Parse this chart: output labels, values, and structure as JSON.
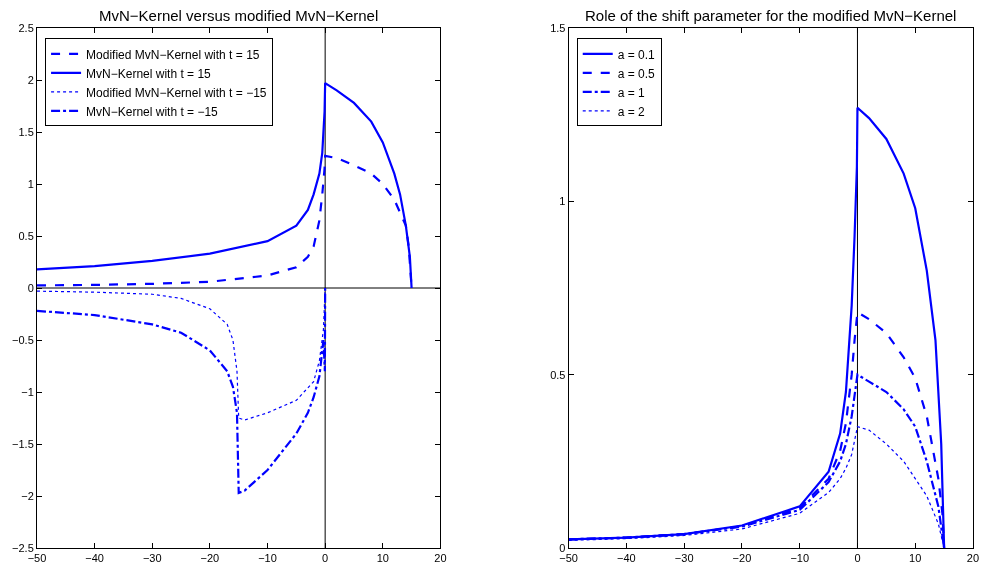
{
  "chart_data": [
    {
      "type": "line",
      "title": "MvN−Kernel versus modified MvN−Kernel",
      "xlim": [
        -50,
        20
      ],
      "xticks": [
        -50,
        -40,
        -30,
        -20,
        -10,
        0,
        10,
        20
      ],
      "ylim": [
        -2.5,
        2.5
      ],
      "yticks": [
        -2.5,
        -2,
        -1.5,
        -1,
        -0.5,
        0,
        0.5,
        1,
        1.5,
        2,
        2.5
      ],
      "grid": false,
      "legend": "top left",
      "ref_lines": [
        {
          "axis": "x",
          "value": 0,
          "color": "#000000"
        },
        {
          "axis": "y",
          "value": 0,
          "color": "#000000"
        }
      ],
      "series": [
        {
          "name": "Modified MvN−Kernel with t = 15",
          "color": "#0000ff",
          "line_style": "dashed",
          "x": [
            -50,
            -40,
            -30,
            -20,
            -10,
            -5,
            -3,
            -2,
            -1,
            -0.5,
            -0.1,
            0,
            2,
            5,
            8,
            10,
            12,
            14,
            14.5,
            15
          ],
          "values": [
            0.025,
            0.03,
            0.04,
            0.06,
            0.12,
            0.2,
            0.3,
            0.4,
            0.65,
            0.9,
            1.15,
            1.27,
            1.25,
            1.18,
            1.1,
            1.0,
            0.85,
            0.6,
            0.4,
            0
          ]
        },
        {
          "name": "MvN−Kernel with t = 15",
          "color": "#0000ff",
          "line_style": "solid",
          "x": [
            -50,
            -40,
            -30,
            -20,
            -10,
            -5,
            -3,
            -2,
            -1,
            -0.5,
            -0.1,
            0,
            2,
            5,
            8,
            10,
            12,
            13,
            14,
            14.7,
            15
          ],
          "values": [
            0.18,
            0.21,
            0.26,
            0.33,
            0.45,
            0.6,
            0.75,
            0.9,
            1.1,
            1.3,
            1.7,
            1.97,
            1.9,
            1.78,
            1.6,
            1.4,
            1.1,
            0.9,
            0.6,
            0.3,
            0
          ]
        },
        {
          "name": "Modified MvN−Kernel with t = −15",
          "color": "#0000ff",
          "line_style": "dotted",
          "x": [
            -50,
            -40,
            -30,
            -25,
            -20,
            -17,
            -16,
            -15.3,
            -15,
            -14,
            -10,
            -5,
            -2,
            -1,
            -0.3,
            0
          ],
          "values": [
            -0.03,
            -0.04,
            -0.06,
            -0.1,
            -0.2,
            -0.35,
            -0.5,
            -0.8,
            -1.25,
            -1.27,
            -1.2,
            -1.08,
            -0.9,
            -0.7,
            -0.4,
            0
          ]
        },
        {
          "name": "MvN−Kernel with t = −15",
          "color": "#0000ff",
          "line_style": "dashdot",
          "x": [
            -50,
            -40,
            -30,
            -25,
            -20,
            -17,
            -16,
            -15.3,
            -15,
            -14,
            -10,
            -5,
            -3,
            -2,
            -1,
            -0.3,
            -0.05,
            0
          ],
          "values": [
            -0.22,
            -0.26,
            -0.35,
            -0.43,
            -0.6,
            -0.8,
            -0.95,
            -1.2,
            -1.97,
            -1.95,
            -1.75,
            -1.4,
            -1.2,
            -1.05,
            -0.85,
            -0.5,
            -0.8,
            0
          ]
        }
      ]
    },
    {
      "type": "line",
      "title": "Role of the shift parameter for the modified MvN−Kernel",
      "xlim": [
        -50,
        20
      ],
      "xticks": [
        -50,
        -40,
        -30,
        -20,
        -10,
        0,
        10,
        20
      ],
      "ylim": [
        0,
        1.5
      ],
      "yticks": [
        0,
        0.5,
        1,
        1.5
      ],
      "grid": false,
      "legend": "top left",
      "ref_lines": [
        {
          "axis": "x",
          "value": 0,
          "color": "#000000"
        }
      ],
      "series": [
        {
          "name": "a = 0.1",
          "color": "#0000ff",
          "line_style": "solid",
          "x": [
            -50,
            -40,
            -30,
            -20,
            -10,
            -5,
            -3,
            -2,
            -1,
            -0.5,
            -0.1,
            0,
            2,
            5,
            8,
            10,
            12,
            13.5,
            14.5,
            15
          ],
          "values": [
            0.025,
            0.03,
            0.04,
            0.065,
            0.12,
            0.22,
            0.33,
            0.45,
            0.7,
            0.9,
            1.1,
            1.27,
            1.24,
            1.18,
            1.08,
            0.98,
            0.8,
            0.6,
            0.3,
            0
          ]
        },
        {
          "name": "a = 0.5",
          "color": "#0000ff",
          "line_style": "dashed",
          "x": [
            -50,
            -40,
            -30,
            -20,
            -10,
            -5,
            -3,
            -2,
            -1,
            -0.5,
            0,
            2,
            5,
            8,
            10,
            12,
            14,
            14.7,
            15
          ],
          "values": [
            0.025,
            0.03,
            0.04,
            0.063,
            0.115,
            0.2,
            0.28,
            0.36,
            0.5,
            0.6,
            0.68,
            0.66,
            0.62,
            0.55,
            0.49,
            0.38,
            0.2,
            0.1,
            0
          ]
        },
        {
          "name": "a = 1",
          "color": "#0000ff",
          "line_style": "dashdot",
          "x": [
            -50,
            -40,
            -30,
            -20,
            -10,
            -5,
            -3,
            -2,
            -1,
            -0.5,
            0,
            2,
            5,
            8,
            10,
            12,
            14,
            15
          ],
          "values": [
            0.025,
            0.03,
            0.04,
            0.062,
            0.11,
            0.19,
            0.25,
            0.3,
            0.38,
            0.44,
            0.5,
            0.48,
            0.45,
            0.4,
            0.35,
            0.25,
            0.12,
            0
          ]
        },
        {
          "name": "a = 2",
          "color": "#0000ff",
          "line_style": "dotted",
          "x": [
            -50,
            -40,
            -30,
            -20,
            -10,
            -5,
            -3,
            -2,
            -1,
            -0.5,
            0,
            2,
            5,
            8,
            10,
            12,
            14,
            15
          ],
          "values": [
            0.022,
            0.027,
            0.036,
            0.055,
            0.1,
            0.16,
            0.2,
            0.23,
            0.27,
            0.31,
            0.35,
            0.34,
            0.3,
            0.25,
            0.2,
            0.15,
            0.07,
            0
          ]
        }
      ]
    }
  ]
}
